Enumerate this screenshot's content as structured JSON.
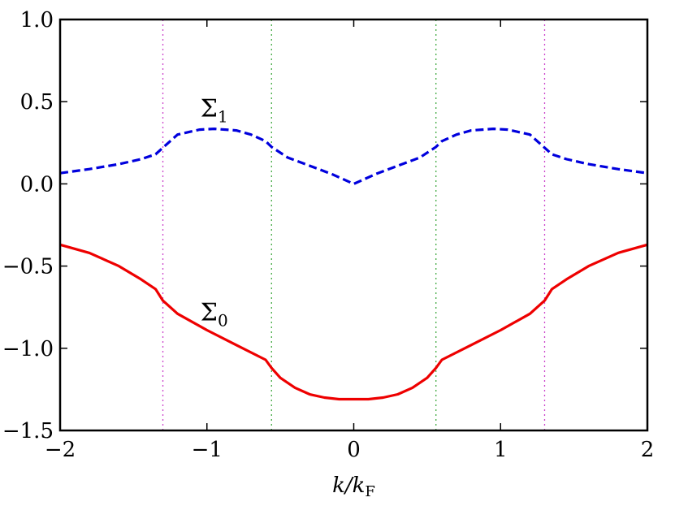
{
  "chart_data": {
    "type": "line",
    "title": "",
    "xlabel": "k/kF",
    "xlabel_parts": {
      "main": "k/k",
      "sub": "F"
    },
    "ylabel": "",
    "xlim": [
      -2,
      2
    ],
    "ylim": [
      -1.5,
      1.0
    ],
    "xticks": [
      -2,
      -1,
      0,
      1,
      2
    ],
    "xtick_labels": [
      "−2",
      "−1",
      "0",
      "1",
      "2"
    ],
    "yticks": [
      1.0,
      0.5,
      0.0,
      -0.5,
      -1.0,
      -1.5
    ],
    "ytick_labels": [
      "1.0",
      "0.5",
      "0.0",
      "−0.5",
      "−1.0",
      "−1.5"
    ],
    "grid": false,
    "vlines": [
      {
        "x": -1.3,
        "color": "#cc44cc",
        "style": "dotted"
      },
      {
        "x": -0.56,
        "color": "#44aa44",
        "style": "dotted"
      },
      {
        "x": 0.56,
        "color": "#44aa44",
        "style": "dotted"
      },
      {
        "x": 1.3,
        "color": "#cc44cc",
        "style": "dotted"
      }
    ],
    "annotations": [
      {
        "symbol": "Σ",
        "sub": "1",
        "x": -0.95,
        "y": 0.46
      },
      {
        "symbol": "Σ",
        "sub": "0",
        "x": -0.95,
        "y": -0.78
      }
    ],
    "series": [
      {
        "color": "#0000dd",
        "style": "dashed",
        "x": [
          -2.0,
          -1.8,
          -1.6,
          -1.45,
          -1.35,
          -1.3,
          -1.2,
          -1.05,
          -0.95,
          -0.8,
          -0.7,
          -0.6,
          -0.56,
          -0.45,
          -0.3,
          -0.15,
          0.0,
          0.15,
          0.3,
          0.45,
          0.56,
          0.6,
          0.7,
          0.8,
          0.95,
          1.05,
          1.2,
          1.3,
          1.35,
          1.45,
          1.6,
          1.8,
          2.0
        ],
        "y": [
          0.065,
          0.09,
          0.12,
          0.15,
          0.18,
          0.22,
          0.3,
          0.33,
          0.335,
          0.325,
          0.3,
          0.26,
          0.225,
          0.16,
          0.11,
          0.06,
          0.0,
          0.06,
          0.11,
          0.16,
          0.225,
          0.26,
          0.3,
          0.325,
          0.335,
          0.33,
          0.3,
          0.22,
          0.18,
          0.15,
          0.12,
          0.09,
          0.065
        ]
      },
      {
        "color": "#ee0000",
        "style": "solid",
        "x": [
          -2.0,
          -1.8,
          -1.6,
          -1.45,
          -1.35,
          -1.3,
          -1.2,
          -1.0,
          -0.8,
          -0.6,
          -0.56,
          -0.5,
          -0.4,
          -0.3,
          -0.2,
          -0.1,
          0.0,
          0.1,
          0.2,
          0.3,
          0.4,
          0.5,
          0.56,
          0.6,
          0.8,
          1.0,
          1.2,
          1.3,
          1.35,
          1.45,
          1.6,
          1.8,
          2.0
        ],
        "y": [
          -0.37,
          -0.42,
          -0.5,
          -0.58,
          -0.64,
          -0.71,
          -0.79,
          -0.89,
          -0.98,
          -1.07,
          -1.12,
          -1.18,
          -1.24,
          -1.28,
          -1.3,
          -1.31,
          -1.31,
          -1.31,
          -1.3,
          -1.28,
          -1.24,
          -1.18,
          -1.12,
          -1.07,
          -0.98,
          -0.89,
          -0.79,
          -0.71,
          -0.64,
          -0.58,
          -0.5,
          -0.42,
          -0.37
        ]
      }
    ]
  }
}
